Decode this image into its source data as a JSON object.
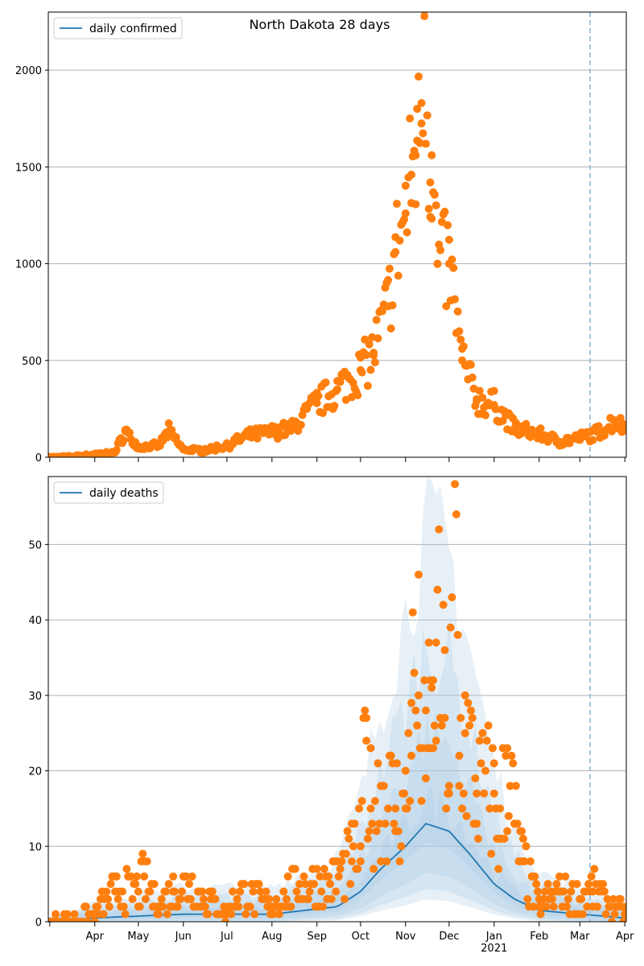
{
  "chart_data": [
    {
      "type": "scatter",
      "title": "North Dakota 28 days",
      "ylim": [
        0,
        2300
      ],
      "yticks": [
        0,
        500,
        1000,
        1500,
        2000
      ],
      "grid": "horizontal",
      "legend": {
        "placement": "top-left",
        "label": "daily confirmed",
        "color": "#1f77b4"
      },
      "colors": {
        "points": "#ff7f0e",
        "line": "#1f77b4",
        "forecast_marker": "#7fb6d9"
      },
      "forecast_date": "2021-03-08",
      "points_sample": [
        [
          "2020-03-01",
          0
        ],
        [
          "2020-03-15",
          3
        ],
        [
          "2020-04-01",
          15
        ],
        [
          "2020-04-15",
          25
        ],
        [
          "2020-04-22",
          135
        ],
        [
          "2020-05-01",
          50
        ],
        [
          "2020-05-15",
          60
        ],
        [
          "2020-05-22",
          135
        ],
        [
          "2020-06-01",
          40
        ],
        [
          "2020-06-15",
          35
        ],
        [
          "2020-07-01",
          60
        ],
        [
          "2020-07-15",
          110
        ],
        [
          "2020-08-01",
          130
        ],
        [
          "2020-08-15",
          150
        ],
        [
          "2020-09-01",
          280
        ],
        [
          "2020-09-15",
          350
        ],
        [
          "2020-10-01",
          450
        ],
        [
          "2020-10-10",
          540
        ],
        [
          "2020-10-20",
          780
        ],
        [
          "2020-10-25",
          1060
        ],
        [
          "2020-11-01",
          1260
        ],
        [
          "2020-11-05",
          1460
        ],
        [
          "2020-11-08",
          1560
        ],
        [
          "2020-11-09",
          1800
        ],
        [
          "2020-11-10",
          1630
        ],
        [
          "2020-11-12",
          1830
        ],
        [
          "2020-11-14",
          2310
        ],
        [
          "2020-11-18",
          1420
        ],
        [
          "2020-11-19",
          1560
        ],
        [
          "2020-11-23",
          1000
        ],
        [
          "2020-12-01",
          1000
        ],
        [
          "2020-12-10",
          500
        ],
        [
          "2020-12-20",
          300
        ],
        [
          "2021-01-01",
          270
        ],
        [
          "2021-01-15",
          150
        ],
        [
          "2021-02-01",
          120
        ],
        [
          "2021-02-15",
          80
        ],
        [
          "2021-03-01",
          100
        ],
        [
          "2021-03-15",
          130
        ],
        [
          "2021-03-25",
          190
        ],
        [
          "2021-04-01",
          150
        ]
      ]
    },
    {
      "type": "scatter",
      "ylim": [
        0,
        59
      ],
      "yticks": [
        0,
        10,
        20,
        30,
        40,
        50
      ],
      "grid": "horizontal",
      "legend": {
        "placement": "top-left",
        "label": "daily deaths",
        "color": "#1f77b4"
      },
      "colors": {
        "points": "#ff7f0e",
        "line": "#1f77b4",
        "band": "#aac9e3",
        "forecast_marker": "#7fb6d9"
      },
      "forecast_date": "2021-03-08",
      "x_ticks": [
        "Apr",
        "May",
        "Jun",
        "Jul",
        "Aug",
        "Sep",
        "Oct",
        "Nov",
        "Dec",
        "Jan",
        "Feb",
        "Mar",
        "Apr"
      ],
      "x_year_label": "2021",
      "points_sample": [
        [
          "2020-03-01",
          0
        ],
        [
          "2020-04-01",
          1
        ],
        [
          "2020-04-15",
          4
        ],
        [
          "2020-05-01",
          4
        ],
        [
          "2020-05-05",
          6
        ],
        [
          "2020-05-15",
          2
        ],
        [
          "2020-05-25",
          4
        ],
        [
          "2020-06-05",
          5
        ],
        [
          "2020-07-01",
          1
        ],
        [
          "2020-07-10",
          4
        ],
        [
          "2020-08-01",
          2
        ],
        [
          "2020-08-20",
          5
        ],
        [
          "2020-09-10",
          5
        ],
        [
          "2020-09-25",
          8
        ],
        [
          "2020-10-01",
          10
        ],
        [
          "2020-10-05",
          24
        ],
        [
          "2020-10-08",
          15
        ],
        [
          "2020-10-15",
          18
        ],
        [
          "2020-10-25",
          15
        ],
        [
          "2020-11-01",
          15
        ],
        [
          "2020-11-05",
          29
        ],
        [
          "2020-11-10",
          30
        ],
        [
          "2020-11-15",
          19
        ],
        [
          "2020-11-18",
          32
        ],
        [
          "2020-11-20",
          23
        ],
        [
          "2020-11-22",
          37
        ],
        [
          "2020-11-28",
          27
        ],
        [
          "2020-12-01",
          18
        ],
        [
          "2020-12-05",
          58
        ],
        [
          "2020-12-08",
          22
        ],
        [
          "2020-12-12",
          25
        ],
        [
          "2020-12-20",
          17
        ],
        [
          "2021-01-01",
          17
        ],
        [
          "2021-01-05",
          11
        ],
        [
          "2021-01-10",
          23
        ],
        [
          "2021-01-15",
          13
        ],
        [
          "2021-01-20",
          8
        ],
        [
          "2021-02-01",
          2
        ],
        [
          "2021-02-15",
          4
        ],
        [
          "2021-03-01",
          3
        ],
        [
          "2021-03-10",
          4
        ],
        [
          "2021-04-01",
          1
        ]
      ],
      "trend": [
        [
          "2020-03-01",
          0
        ],
        [
          "2020-04-01",
          0.5
        ],
        [
          "2020-06-01",
          1
        ],
        [
          "2020-08-01",
          1
        ],
        [
          "2020-09-15",
          2
        ],
        [
          "2020-10-01",
          4
        ],
        [
          "2020-10-15",
          7
        ],
        [
          "2020-11-01",
          10
        ],
        [
          "2020-11-15",
          13
        ],
        [
          "2020-12-01",
          12
        ],
        [
          "2020-12-15",
          9
        ],
        [
          "2021-01-01",
          5
        ],
        [
          "2021-01-15",
          3
        ],
        [
          "2021-02-01",
          1.5
        ],
        [
          "2021-03-01",
          1
        ],
        [
          "2021-04-01",
          0.5
        ]
      ]
    }
  ]
}
